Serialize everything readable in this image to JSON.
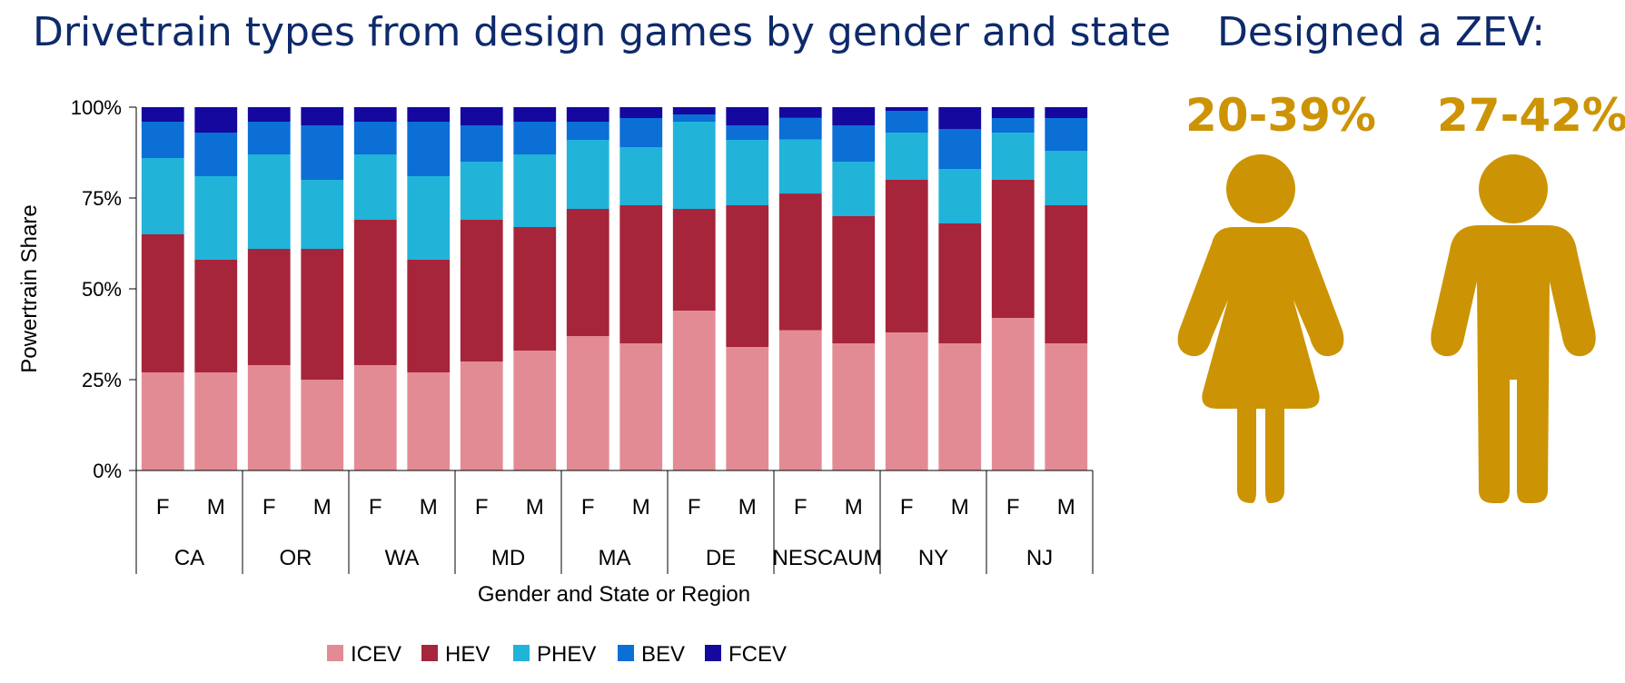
{
  "title": "Drivetrain types from design games by gender and state",
  "zev_panel": {
    "title": "Designed a ZEV:",
    "female_pct": "20-39%",
    "male_pct": "27-42%",
    "icon_color": "#cc9405"
  },
  "chart_data": {
    "type": "bar",
    "stacked": true,
    "ylabel": "Powertrain Share",
    "xlabel": "Gender and State or Region",
    "yticks": [
      "0%",
      "25%",
      "50%",
      "75%",
      "100%"
    ],
    "ylim": [
      0,
      1
    ],
    "groups": [
      "CA",
      "OR",
      "WA",
      "MD",
      "MA",
      "DE",
      "NESCAUM",
      "NY",
      "NJ"
    ],
    "subcategories": [
      "F",
      "M"
    ],
    "categories": [
      "CA-F",
      "CA-M",
      "OR-F",
      "OR-M",
      "WA-F",
      "WA-M",
      "MD-F",
      "MD-M",
      "MA-F",
      "MA-M",
      "DE-F",
      "DE-M",
      "NESCAUM-F",
      "NESCAUM-M",
      "NY-F",
      "NY-M",
      "NJ-F",
      "NJ-M"
    ],
    "legend_position": "bottom",
    "series": [
      {
        "name": "ICEV",
        "color": "#e38b94",
        "values": [
          0.27,
          0.27,
          0.29,
          0.25,
          0.29,
          0.27,
          0.3,
          0.33,
          0.37,
          0.35,
          0.44,
          0.34,
          0.39,
          0.35,
          0.38,
          0.35,
          0.42,
          0.35
        ]
      },
      {
        "name": "HEV",
        "color": "#a6253a",
        "values": [
          0.38,
          0.31,
          0.32,
          0.36,
          0.4,
          0.31,
          0.39,
          0.34,
          0.35,
          0.38,
          0.28,
          0.39,
          0.38,
          0.35,
          0.42,
          0.33,
          0.38,
          0.38
        ]
      },
      {
        "name": "PHEV",
        "color": "#22b3d9",
        "values": [
          0.21,
          0.23,
          0.26,
          0.19,
          0.18,
          0.23,
          0.16,
          0.2,
          0.19,
          0.16,
          0.24,
          0.18,
          0.15,
          0.15,
          0.13,
          0.15,
          0.13,
          0.15
        ]
      },
      {
        "name": "BEV",
        "color": "#0b6fd6",
        "values": [
          0.1,
          0.12,
          0.09,
          0.15,
          0.09,
          0.15,
          0.1,
          0.09,
          0.05,
          0.08,
          0.02,
          0.04,
          0.06,
          0.1,
          0.06,
          0.11,
          0.04,
          0.09
        ]
      },
      {
        "name": "FCEV",
        "color": "#15089e",
        "values": [
          0.04,
          0.07,
          0.04,
          0.05,
          0.04,
          0.04,
          0.05,
          0.04,
          0.04,
          0.03,
          0.02,
          0.05,
          0.03,
          0.05,
          0.01,
          0.06,
          0.03,
          0.03
        ]
      }
    ]
  }
}
